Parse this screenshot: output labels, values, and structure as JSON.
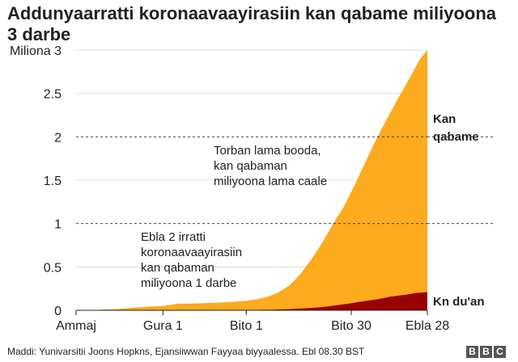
{
  "title": "Addunyaarratti koronaavaayirasiin kan qabame miliyoona 3 darbe",
  "source": "Maddi: Yunivarsitii Joons Hopkns, Ejansiiwwan Fayyaa biyyaalessa. Ebl 08.30 BST",
  "logo": [
    "B",
    "B",
    "C"
  ],
  "colors": {
    "confirmed": "#FCAA1E",
    "deaths": "#990000",
    "axis": "#222222",
    "grid": "#444444"
  },
  "chart_data": {
    "type": "area",
    "title": "Addunyaarratti koronaavaayirasiin kan qabame miliyoona 3 darbe",
    "ylabel": "Miliona 3",
    "ylim": [
      0,
      3
    ],
    "xlim": [
      "2020-01-22",
      "2020-04-28"
    ],
    "y_ticks": [
      {
        "value": 0,
        "label": "0"
      },
      {
        "value": 0.5,
        "label": "0.5"
      },
      {
        "value": 1,
        "label": "1"
      },
      {
        "value": 1.5,
        "label": "1.5"
      },
      {
        "value": 2,
        "label": "2"
      },
      {
        "value": 2.5,
        "label": "2.5"
      },
      {
        "value": 3,
        "label": "Miliona 3"
      }
    ],
    "x_ticks": [
      {
        "date": "2020-01-22",
        "label": "Ammaj"
      },
      {
        "date": "2020-02-15",
        "label": "Gura 1"
      },
      {
        "date": "2020-03-09",
        "label": "Bito 1"
      },
      {
        "date": "2020-04-07",
        "label": "Bito 30"
      },
      {
        "date": "2020-04-28",
        "label": "Ebla 28"
      }
    ],
    "reference_lines": [
      1,
      2
    ],
    "series": [
      {
        "name": "Kan qabame",
        "color": "#FCAA1E",
        "points": [
          [
            "2020-01-22",
            0.0006
          ],
          [
            "2020-01-28",
            0.005
          ],
          [
            "2020-02-03",
            0.017
          ],
          [
            "2020-02-09",
            0.037
          ],
          [
            "2020-02-15",
            0.05
          ],
          [
            "2020-02-19",
            0.075
          ],
          [
            "2020-02-21",
            0.077
          ],
          [
            "2020-02-25",
            0.08
          ],
          [
            "2020-03-01",
            0.088
          ],
          [
            "2020-03-05",
            0.097
          ],
          [
            "2020-03-09",
            0.11
          ],
          [
            "2020-03-12",
            0.128
          ],
          [
            "2020-03-15",
            0.157
          ],
          [
            "2020-03-18",
            0.21
          ],
          [
            "2020-03-21",
            0.29
          ],
          [
            "2020-03-24",
            0.42
          ],
          [
            "2020-03-27",
            0.59
          ],
          [
            "2020-03-30",
            0.78
          ],
          [
            "2020-04-02",
            1.0
          ],
          [
            "2020-04-05",
            1.2
          ],
          [
            "2020-04-08",
            1.45
          ],
          [
            "2020-04-11",
            1.72
          ],
          [
            "2020-04-14",
            1.98
          ],
          [
            "2020-04-17",
            2.22
          ],
          [
            "2020-04-20",
            2.45
          ],
          [
            "2020-04-23",
            2.67
          ],
          [
            "2020-04-26",
            2.9
          ],
          [
            "2020-04-28",
            3.0
          ]
        ]
      },
      {
        "name": "Kn du'an",
        "color": "#990000",
        "points": [
          [
            "2020-01-22",
            0.0
          ],
          [
            "2020-02-15",
            0.0015
          ],
          [
            "2020-03-09",
            0.004
          ],
          [
            "2020-03-15",
            0.006
          ],
          [
            "2020-03-20",
            0.011
          ],
          [
            "2020-03-25",
            0.022
          ],
          [
            "2020-03-30",
            0.037
          ],
          [
            "2020-04-02",
            0.053
          ],
          [
            "2020-04-06",
            0.075
          ],
          [
            "2020-04-10",
            0.102
          ],
          [
            "2020-04-14",
            0.126
          ],
          [
            "2020-04-18",
            0.158
          ],
          [
            "2020-04-22",
            0.18
          ],
          [
            "2020-04-25",
            0.2
          ],
          [
            "2020-04-28",
            0.21
          ]
        ]
      }
    ],
    "annotations": [
      {
        "id": "two-million",
        "lines": [
          "Torban lama booda,",
          "kan qabaman",
          "miliyoona lama caale"
        ]
      },
      {
        "id": "one-million",
        "lines": [
          "Ebla 2 irratti",
          "koronaavaayirasiin",
          "kan qabaman",
          "miliyoona 1 darbe"
        ]
      }
    ],
    "series_labels": [
      {
        "series": "Kan qabame",
        "lines": [
          "Kan",
          "qabame"
        ]
      },
      {
        "series": "Kn du'an",
        "lines": [
          "Kn du'an"
        ]
      }
    ]
  }
}
